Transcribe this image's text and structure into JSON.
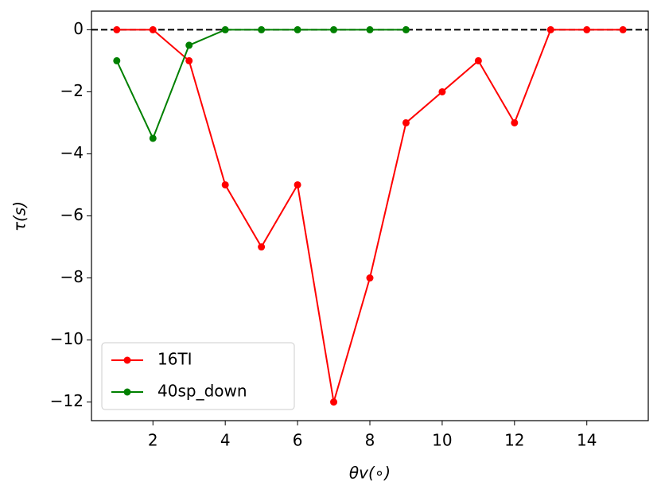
{
  "chart_data": {
    "type": "line",
    "xlabel": "θv(∘)",
    "ylabel": "τ(s)",
    "xlim": [
      0.3,
      15.7
    ],
    "ylim": [
      -12.6,
      0.6
    ],
    "xticks": [
      2,
      4,
      6,
      8,
      10,
      12,
      14
    ],
    "yticks": [
      0,
      {
        "value": -2,
        "label": "−2"
      },
      {
        "value": -4,
        "label": "−4"
      },
      {
        "value": -6,
        "label": "−6"
      },
      {
        "value": -8,
        "label": "−8"
      },
      {
        "value": -10,
        "label": "−10"
      },
      {
        "value": -12,
        "label": "−12"
      }
    ],
    "hline": {
      "value": 0,
      "color": "#000000",
      "style": "dashed"
    },
    "legend": "lower left",
    "series": [
      {
        "name": "16TI",
        "color": "#ff0000",
        "x": [
          1,
          2,
          3,
          4,
          5,
          6,
          7,
          8,
          9,
          10,
          11,
          12,
          13,
          14,
          15
        ],
        "values": [
          0,
          0,
          -1,
          -5,
          -7,
          -5,
          -12,
          -8,
          -3,
          -2,
          -1,
          -3,
          0,
          0,
          0
        ]
      },
      {
        "name": "40sp_down",
        "color": "#008000",
        "x": [
          1,
          2,
          3,
          4,
          5,
          6,
          7,
          8,
          9
        ],
        "values": [
          -1,
          -3.5,
          -0.5,
          0,
          0,
          0,
          0,
          0,
          0
        ]
      }
    ]
  }
}
